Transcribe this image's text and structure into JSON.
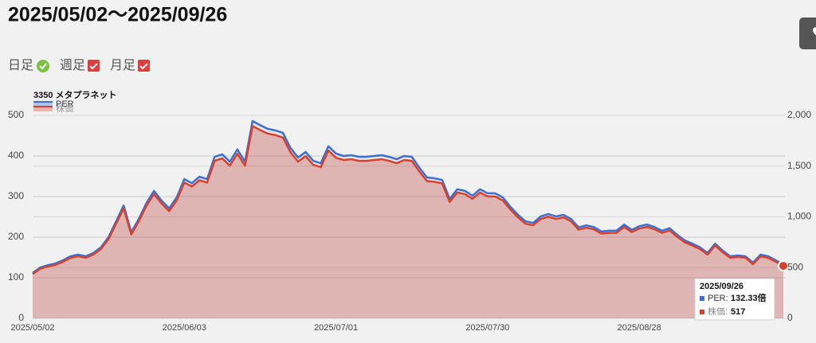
{
  "header": {
    "title": "2025/05/02〜2025/09/26"
  },
  "toggles": [
    {
      "label": "日足"
    },
    {
      "label": "週足"
    },
    {
      "label": "月足"
    }
  ],
  "chart_data": {
    "type": "line",
    "title": "3350 メタプラネット",
    "categories": [
      "2025/05/02",
      null,
      null,
      null,
      null,
      null,
      null,
      null,
      null,
      null,
      null,
      null,
      null,
      null,
      null,
      null,
      null,
      null,
      null,
      null,
      "2025/06/03",
      null,
      null,
      null,
      null,
      null,
      null,
      null,
      null,
      null,
      null,
      null,
      null,
      null,
      null,
      null,
      null,
      null,
      null,
      null,
      "2025/07/01",
      null,
      null,
      null,
      null,
      null,
      null,
      null,
      null,
      null,
      null,
      null,
      null,
      null,
      null,
      null,
      null,
      null,
      null,
      null,
      "2025/07/30",
      null,
      null,
      null,
      null,
      null,
      null,
      null,
      null,
      null,
      null,
      null,
      null,
      null,
      null,
      null,
      null,
      null,
      null,
      null,
      "2025/08/28",
      null,
      null,
      null,
      null,
      null,
      null,
      null,
      null,
      null,
      null,
      null,
      null,
      null,
      null,
      null,
      null,
      null,
      null,
      null
    ],
    "series": [
      {
        "name": "PER",
        "color": "#3b6fd6",
        "values": [
          112,
          125,
          131,
          135,
          143,
          153,
          157,
          153,
          161,
          175,
          200,
          239,
          278,
          212,
          245,
          284,
          314,
          290,
          271,
          298,
          343,
          333,
          349,
          343,
          398,
          404,
          386,
          416,
          386,
          486,
          476,
          467,
          463,
          457,
          420,
          396,
          410,
          388,
          382,
          424,
          406,
          400,
          402,
          398,
          398,
          400,
          402,
          398,
          392,
          400,
          398,
          371,
          347,
          345,
          341,
          294,
          318,
          314,
          302,
          318,
          308,
          308,
          298,
          275,
          255,
          239,
          235,
          251,
          257,
          251,
          255,
          245,
          224,
          229,
          225,
          214,
          216,
          216,
          231,
          218,
          227,
          231,
          225,
          216,
          222,
          206,
          192,
          184,
          175,
          161,
          184,
          167,
          153,
          155,
          153,
          137,
          157,
          153,
          143,
          132.33
        ]
      },
      {
        "name": "株価",
        "color": "#d8412b",
        "axis": "y2",
        "values": [
          437,
          488,
          511,
          527,
          558,
          597,
          612,
          597,
          628,
          683,
          780,
          932,
          1084,
          827,
          956,
          1108,
          1225,
          1131,
          1057,
          1162,
          1338,
          1299,
          1361,
          1338,
          1552,
          1576,
          1505,
          1622,
          1505,
          1895,
          1856,
          1821,
          1806,
          1782,
          1638,
          1544,
          1599,
          1513,
          1490,
          1654,
          1583,
          1560,
          1568,
          1552,
          1552,
          1560,
          1568,
          1552,
          1529,
          1560,
          1552,
          1447,
          1353,
          1346,
          1330,
          1147,
          1240,
          1225,
          1178,
          1240,
          1201,
          1201,
          1162,
          1073,
          995,
          932,
          917,
          979,
          1002,
          979,
          995,
          956,
          874,
          893,
          878,
          835,
          842,
          842,
          901,
          850,
          885,
          901,
          878,
          842,
          866,
          803,
          749,
          718,
          683,
          628,
          718,
          651,
          597,
          605,
          597,
          534,
          612,
          597,
          558,
          517
        ]
      }
    ],
    "ylim": [
      0,
      500
    ],
    "yticks": [
      0,
      100,
      200,
      300,
      400,
      500
    ],
    "y2lim": [
      0,
      2000
    ],
    "y2ticks": [
      0,
      500,
      {
        "value": 1000,
        "label": "1,000"
      },
      {
        "value": 1500,
        "label": "1,500"
      },
      {
        "value": 2000,
        "label": "2,000"
      }
    ],
    "grid": true,
    "area": true
  },
  "tooltip": {
    "title": "2025/09/26",
    "rows": [
      {
        "label": "PER:",
        "value": "132.33倍"
      },
      {
        "label": "株価:",
        "value": "517"
      }
    ]
  }
}
